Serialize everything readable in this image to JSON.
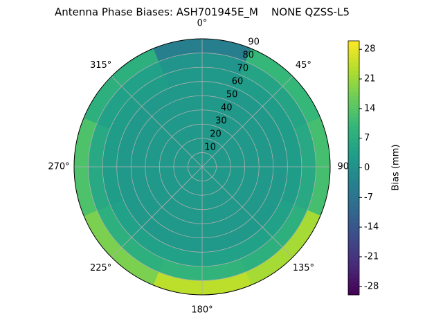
{
  "chart_data": {
    "type": "polar-heatmap",
    "title": "Antenna Phase Biases: ASH701945E_M    NONE QZSS-L5",
    "colorbar_label": "Bias (mm)",
    "colormap": "viridis",
    "r_bins": [
      0,
      10,
      20,
      30,
      40,
      50,
      60,
      70,
      80,
      90
    ],
    "theta_bins": [
      -22.5,
      22.5,
      67.5,
      112.5,
      157.5,
      202.5,
      247.5,
      292.5,
      337.5
    ],
    "values": [
      [
        2,
        2,
        2,
        2,
        2,
        2,
        2,
        2
      ],
      [
        2,
        2,
        2,
        2,
        2,
        2,
        2,
        2
      ],
      [
        2,
        2,
        2,
        2,
        2,
        2,
        2,
        2
      ],
      [
        2,
        2,
        2,
        2,
        2,
        2,
        2,
        2
      ],
      [
        2,
        2,
        2,
        2,
        2,
        2,
        2,
        2
      ],
      [
        2,
        2,
        2,
        2,
        2,
        2,
        2,
        2
      ],
      [
        2,
        3,
        3,
        4,
        4,
        4,
        3,
        3
      ],
      [
        1,
        5,
        6,
        8,
        9,
        8,
        6,
        4
      ],
      [
        -4,
        10,
        12,
        22,
        24,
        18,
        13,
        8
      ]
    ],
    "rlim": [
      0,
      90
    ],
    "rticks": [
      10,
      20,
      30,
      40,
      50,
      60,
      70,
      80,
      90
    ],
    "thetaticks": [
      {
        "value": 0,
        "label": "0°"
      },
      {
        "value": 45,
        "label": "45°"
      },
      {
        "value": 90,
        "label": "90°"
      },
      {
        "value": 135,
        "label": "135°"
      },
      {
        "value": 180,
        "label": "180°"
      },
      {
        "value": 225,
        "label": "225°"
      },
      {
        "value": 270,
        "label": "270°"
      },
      {
        "value": 315,
        "label": "315°"
      }
    ],
    "clim": [
      -30,
      30
    ],
    "cticks": [
      -28,
      -21,
      -14,
      -7,
      0,
      7,
      14,
      21,
      28
    ],
    "grid": true
  }
}
